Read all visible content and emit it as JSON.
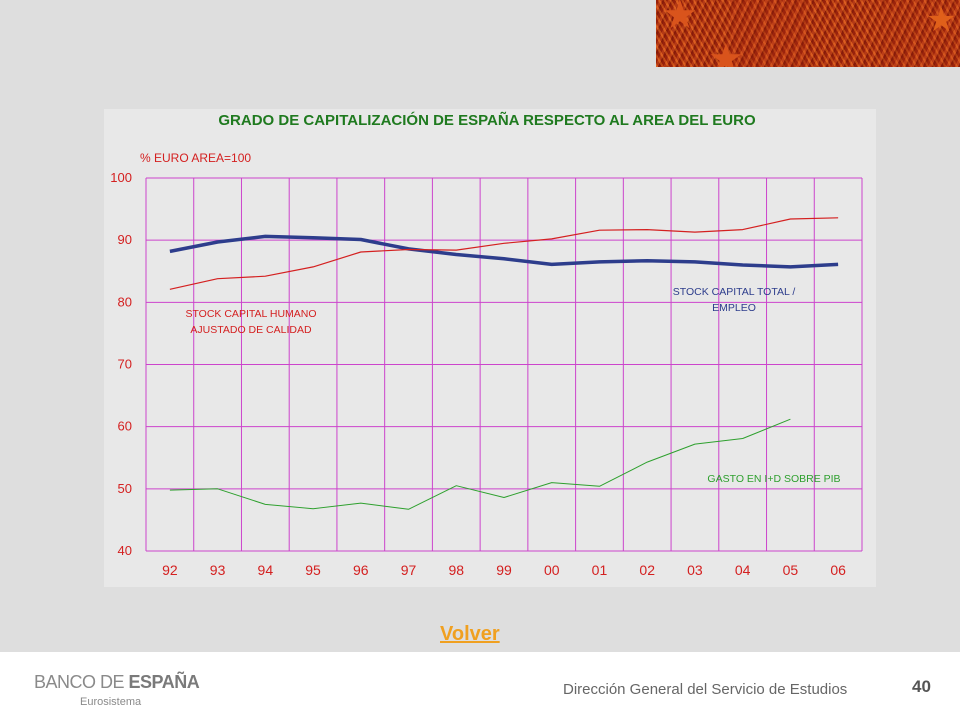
{
  "chart_data": {
    "type": "line",
    "title": "GRADO DE CAPITALIZACIÓN DE ESPAÑA RESPECTO AL AREA DEL EURO",
    "ylabel": "% EURO AREA=100",
    "ylim": [
      40,
      100
    ],
    "yticks": [
      "40",
      "50",
      "60",
      "70",
      "80",
      "90",
      "100"
    ],
    "categories": [
      "92",
      "93",
      "94",
      "95",
      "96",
      "97",
      "98",
      "99",
      "00",
      "01",
      "02",
      "03",
      "04",
      "05",
      "06"
    ],
    "grid": true,
    "series": [
      {
        "name": "STOCK CAPITAL TOTAL / EMPLEO",
        "label_lines": [
          "STOCK CAPITAL TOTAL /",
          "EMPLEO"
        ],
        "color": "#2d3d8c",
        "values": [
          88.2,
          89.7,
          90.6,
          90.4,
          90.1,
          88.6,
          87.7,
          87.0,
          86.1,
          86.5,
          86.7,
          86.5,
          86.0,
          85.7,
          86.1
        ]
      },
      {
        "name": "STOCK CAPITAL HUMANO AJUSTADO DE CALIDAD",
        "label_lines": [
          "STOCK CAPITAL HUMANO",
          "AJUSTADO DE CALIDAD"
        ],
        "color": "#d42020",
        "values": [
          82.1,
          83.8,
          84.2,
          85.7,
          88.1,
          88.5,
          88.4,
          89.5,
          90.2,
          91.6,
          91.7,
          91.3,
          91.7,
          93.4,
          93.6
        ]
      },
      {
        "name": "GASTO EN I+D SOBRE PIB",
        "label_lines": [
          "GASTO EN I+D SOBRE PIB"
        ],
        "color": "#2ea02e",
        "values": [
          49.8,
          50.0,
          47.5,
          46.8,
          47.7,
          46.7,
          50.5,
          48.6,
          51.0,
          50.4,
          54.3,
          57.2,
          58.1,
          61.2,
          null
        ]
      }
    ]
  },
  "nav": {
    "volver_label": "Volver"
  },
  "footer": {
    "logo_main": "BANCO DE ",
    "logo_bold": "ESPAÑA",
    "logo_sub": "Eurosistema",
    "department": "Dirección General del Servicio de Estudios",
    "page_number": "40"
  },
  "colors": {
    "grid": "#cc44cc",
    "axis_text": "#d42020",
    "title": "#1f7a1f",
    "link": "#f0a020"
  }
}
